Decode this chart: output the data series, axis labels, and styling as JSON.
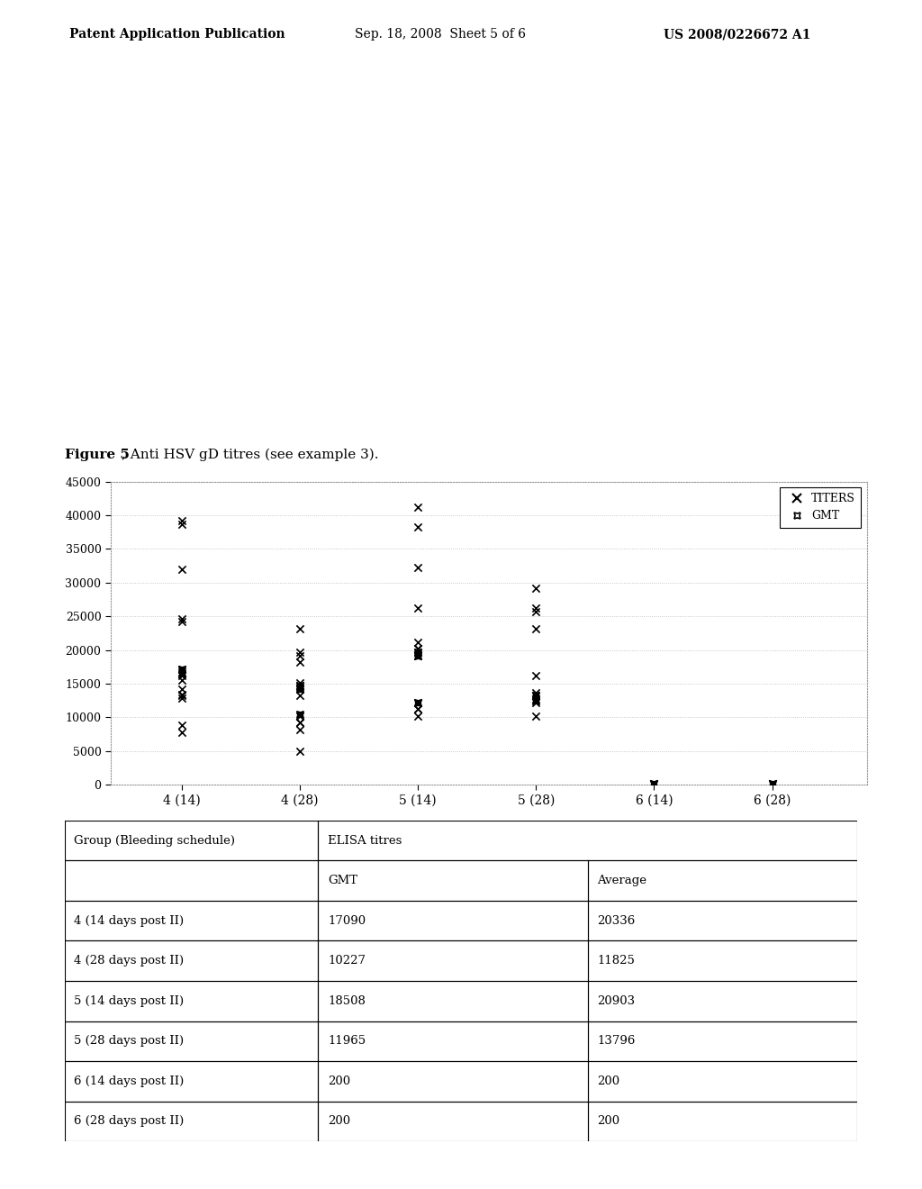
{
  "figure_title_bold": "Figure 5",
  "figure_title_rest": ", Anti HSV gD titres (see example 3).",
  "header_left": "Patent Application Publication",
  "header_mid": "Sep. 18, 2008  Sheet 5 of 6",
  "header_right": "US 2008/0226672 A1",
  "x_labels": [
    "4 (14)",
    "4 (28)",
    "5 (14)",
    "5 (28)",
    "6 (14)",
    "6 (28)"
  ],
  "ylim": [
    0,
    45000
  ],
  "yticks": [
    0,
    5000,
    10000,
    15000,
    20000,
    25000,
    30000,
    35000,
    40000,
    45000
  ],
  "titers": {
    "4_14": [
      15500,
      16200,
      13200,
      12800,
      16800,
      17200,
      24200,
      24600,
      13400,
      14200,
      8800,
      7800,
      38700,
      39200,
      32000
    ],
    "4_28": [
      23200,
      19200,
      19700,
      18200,
      14700,
      15200,
      14700,
      13200,
      10200,
      9200,
      9200,
      8200,
      5000
    ],
    "5_14": [
      41200,
      38200,
      32200,
      26200,
      21200,
      20200,
      20200,
      19200,
      19700,
      12200,
      11200,
      11200,
      10200
    ],
    "5_28": [
      29200,
      26200,
      25700,
      23200,
      16200,
      13700,
      13200,
      12200,
      12700,
      10200
    ],
    "6_14": [
      200,
      200
    ],
    "6_28": [
      200,
      200
    ]
  },
  "gmt": {
    "4_14": [
      17090,
      16500
    ],
    "4_28": [
      10500,
      14500,
      14200
    ],
    "5_14": [
      19200,
      19700,
      12200
    ],
    "5_28": [
      13200,
      12500
    ],
    "6_14": [
      200
    ],
    "6_28": [
      200
    ]
  },
  "table_rows": [
    [
      "4 (14 days post II)",
      "17090",
      "20336"
    ],
    [
      "4 (28 days post II)",
      "10227",
      "11825"
    ],
    [
      "5 (14 days post II)",
      "18508",
      "20903"
    ],
    [
      "5 (28 days post II)",
      "11965",
      "13796"
    ],
    [
      "6 (14 days post II)",
      "200",
      "200"
    ],
    [
      "6 (28 days post II)",
      "200",
      "200"
    ]
  ],
  "background_color": "#ffffff"
}
